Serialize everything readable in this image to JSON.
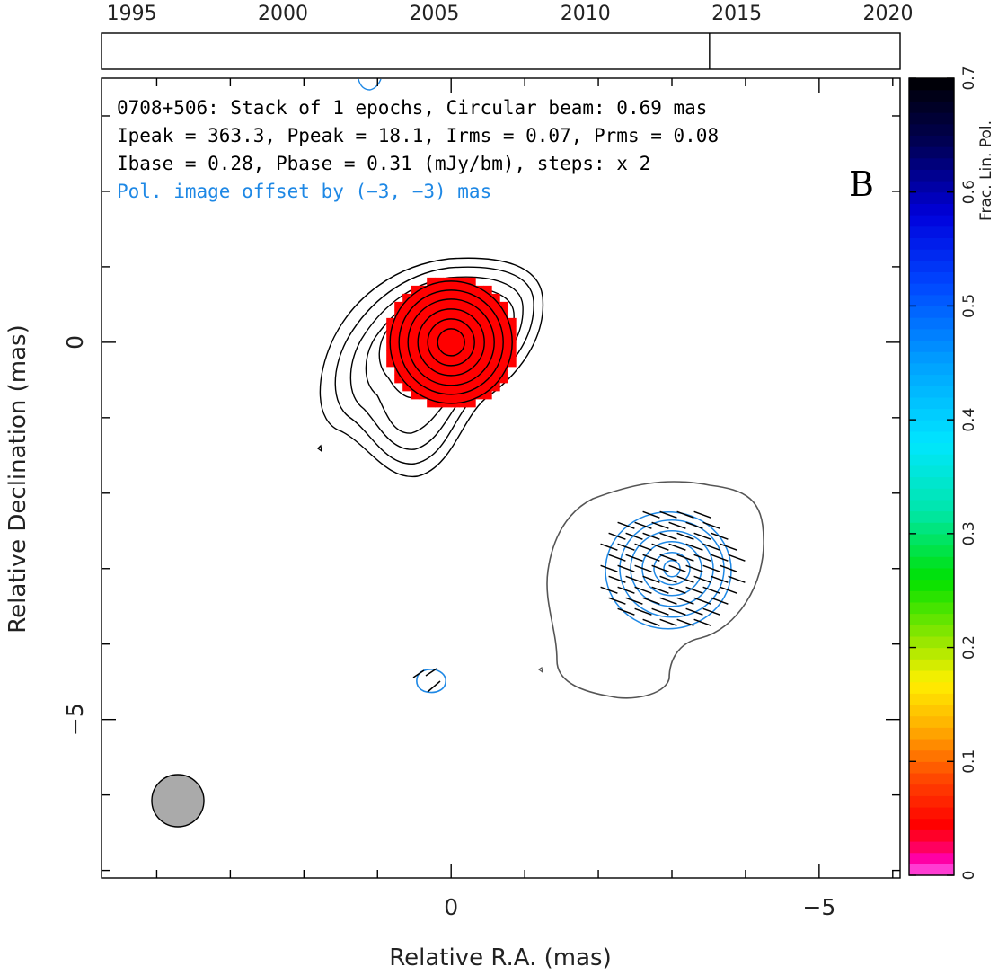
{
  "chart_data": {
    "type": "contour",
    "source": "0708+506",
    "annotations": {
      "line1": "0708+506: Stack of 1 epochs, Circular beam: 0.69 mas",
      "line2": "Ipeak = 363.3, Ppeak = 18.1, Irms = 0.07, Prms = 0.08",
      "line3": "Ibase = 0.28, Pbase = 0.31 (mJy/bm), steps: x 2",
      "offset_note": "Pol. image offset by (−3, −3) mas",
      "panel_letter": "B"
    },
    "xlabel": "Relative R.A. (mas)",
    "ylabel": "Relative Declination (mas)",
    "x_axis": {
      "inverted": true,
      "xlim": [
        4.75,
        -6.1
      ],
      "ticks": [
        {
          "v": 0,
          "label": "0"
        },
        {
          "v": -5,
          "label": "−5"
        }
      ]
    },
    "y_axis": {
      "ylim": [
        -7.1,
        3.5
      ],
      "ticks": [
        {
          "v": 0,
          "label": "0"
        },
        {
          "v": -5,
          "label": "−5"
        }
      ]
    },
    "epoch_timeline": {
      "range": [
        1994,
        2020.4
      ],
      "tick_labels": [
        "1995",
        "2000",
        "2005",
        "2010",
        "2015",
        "2020"
      ],
      "tick_values": [
        1995,
        2000,
        2005,
        2010,
        2015,
        2020
      ],
      "epochs": [
        2014.1
      ]
    },
    "colorbar": {
      "label": "Frac. Lin. Pol.",
      "range": [
        0,
        0.7
      ],
      "tick_values": [
        0,
        0.1,
        0.2,
        0.3,
        0.4,
        0.5,
        0.6,
        0.7
      ],
      "tick_labels": [
        "0",
        "0.1",
        "0.2",
        "0.3",
        "0.4",
        "0.5",
        "0.6",
        "0.7"
      ]
    },
    "beam": {
      "x": 3.7,
      "y": -6.2,
      "diameter_mas": 0.69
    },
    "stokes_i": {
      "color": "#000000",
      "peak": {
        "x": 0,
        "y": 0
      },
      "fill_color": "#ff0000",
      "fill_fraction_pol": 0.05
    },
    "polarization": {
      "contour_color": "#1e88e5",
      "center": {
        "x": -3,
        "y": -3
      },
      "outer_contour_color": "#555555",
      "evpa_deg": -20,
      "stray_blobs": [
        {
          "x": 0.28,
          "y": -4.6
        }
      ]
    }
  }
}
